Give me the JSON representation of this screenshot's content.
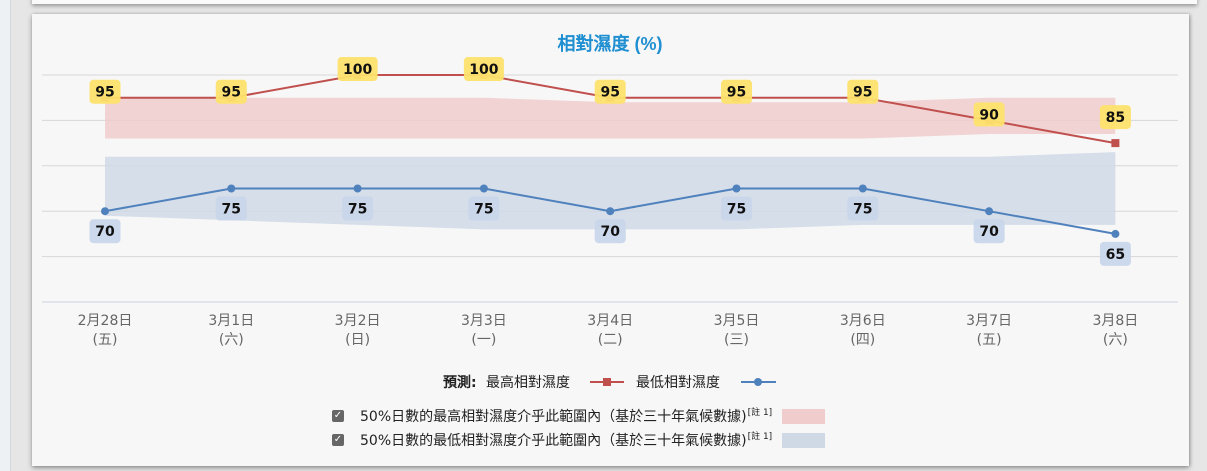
{
  "chart_data": {
    "type": "line",
    "title": "相對濕度 (%)",
    "categories": [
      [
        "2月28日",
        "(五)"
      ],
      [
        "3月1日",
        "(六)"
      ],
      [
        "3月2日",
        "(日)"
      ],
      [
        "3月3日",
        "(一)"
      ],
      [
        "3月4日",
        "(二)"
      ],
      [
        "3月5日",
        "(三)"
      ],
      [
        "3月6日",
        "(四)"
      ],
      [
        "3月7日",
        "(五)"
      ],
      [
        "3月8日",
        "(六)"
      ]
    ],
    "ylim": [
      50,
      100
    ],
    "series": [
      {
        "name": "最高相對濕度",
        "color": "#c0504d",
        "marker": "square",
        "values": [
          95,
          95,
          100,
          100,
          95,
          95,
          95,
          90,
          85
        ]
      },
      {
        "name": "最低相對濕度",
        "color": "#4f81bd",
        "marker": "circle",
        "values": [
          70,
          75,
          75,
          75,
          70,
          75,
          75,
          70,
          65
        ]
      }
    ],
    "bands": [
      {
        "name": "50%日數的最高相對濕度介乎此範圍內（基於三十年氣候數據）",
        "color": "#f0cccc",
        "low": [
          86,
          86,
          86,
          86,
          86,
          86,
          86,
          87,
          87
        ],
        "high": [
          95,
          95,
          95,
          95,
          94,
          94,
          94,
          95,
          95
        ]
      },
      {
        "name": "50%日數的最低相對濕度介乎此範圍內（基於三十年氣候數據）",
        "color": "#cfd9e6",
        "low": [
          69,
          68,
          67,
          66,
          66,
          66,
          67,
          67,
          67
        ],
        "high": [
          82,
          82,
          82,
          82,
          82,
          82,
          82,
          82,
          83
        ]
      }
    ],
    "data_label_bg": {
      "max": "#fde26b",
      "min": "#c9d6ea"
    },
    "grid": true
  },
  "legend": {
    "forecast_label": "預測:",
    "max_label": "最高相對濕度",
    "min_label": "最低相對濕度",
    "band_max_text": "50%日數的最高相對濕度介乎此範圍內（基於三十年氣候數據)",
    "band_min_text": "50%日數的最低相對濕度介乎此範圍內（基於三十年氣候數據)",
    "note": "[註 1]",
    "checkbox_glyph": "✓"
  }
}
